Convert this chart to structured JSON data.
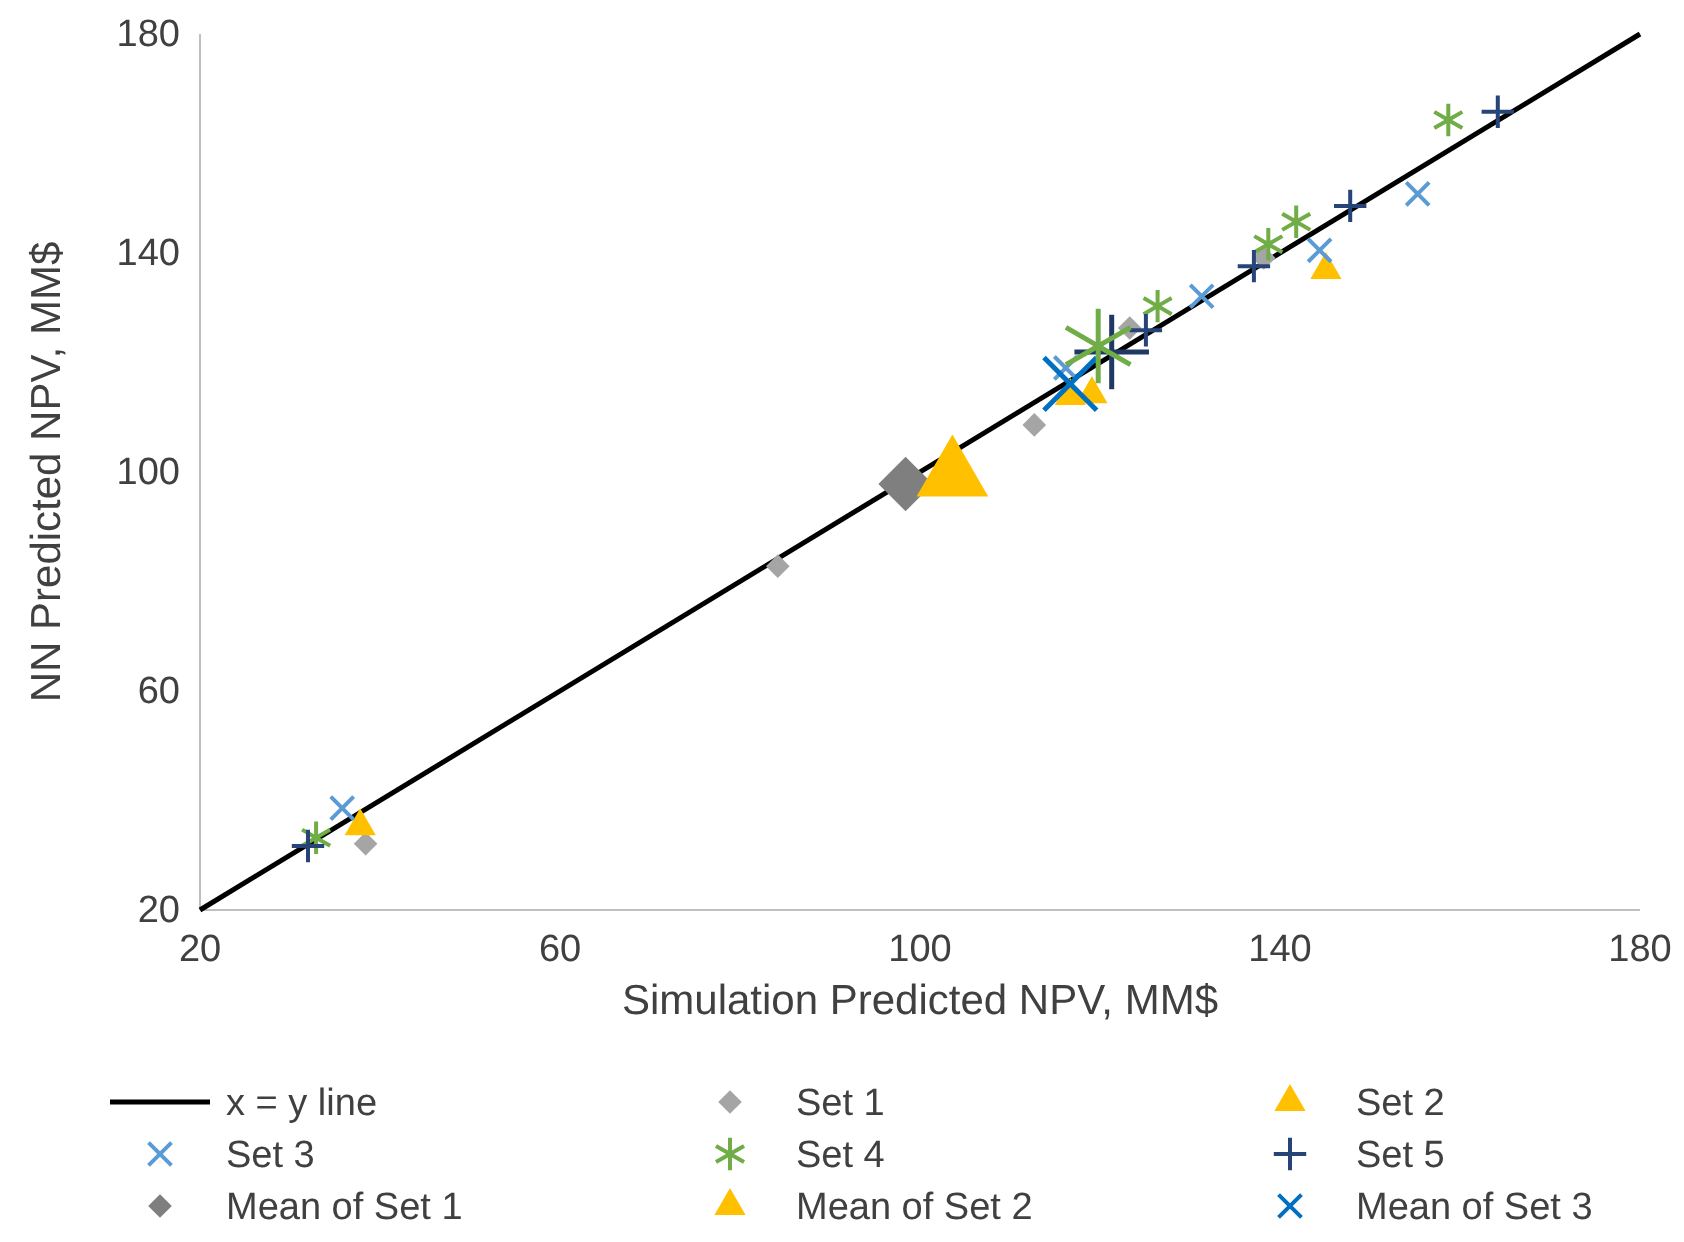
{
  "chart_data": {
    "type": "scatter",
    "xlabel": "Simulation Predicted NPV, MM$",
    "ylabel": "NN Predicted NPV, MM$",
    "xlim": [
      20,
      180
    ],
    "ylim": [
      20,
      180
    ],
    "xticks": [
      20,
      60,
      100,
      140,
      180
    ],
    "yticks": [
      20,
      60,
      100,
      140,
      180
    ],
    "grid": false,
    "legend": "bottom",
    "series": [
      {
        "name": "x = y line",
        "type": "line",
        "color": "#000000",
        "line_style": "solid",
        "marker": "none",
        "x": [
          20,
          180
        ],
        "values": [
          20,
          180
        ]
      },
      {
        "name": "Set 1",
        "color": "#a5a5a5",
        "marker": "diamond",
        "x": [
          38.4,
          84.2,
          112.7,
          123.3,
          138.2
        ],
        "values": [
          32.1,
          82.8,
          108.6,
          126.3,
          139.1
        ]
      },
      {
        "name": "Set 2",
        "color": "#ffc000",
        "marker": "triangle",
        "x": [
          37.8,
          116.7,
          119.1,
          145.1
        ],
        "values": [
          35.3,
          113.9,
          114.2,
          136.9
        ]
      },
      {
        "name": "Set 3",
        "color": "#5b9bd5",
        "marker": "x",
        "x": [
          35.8,
          116.2,
          131.3,
          144.4,
          155.3
        ],
        "values": [
          38.6,
          119.0,
          132.1,
          140.5,
          150.8
        ]
      },
      {
        "name": "Set 4",
        "color": "#70ad47",
        "marker": "star",
        "x": [
          32.9,
          126.4,
          138.7,
          141.8,
          158.7
        ],
        "values": [
          33.2,
          130.3,
          141.6,
          145.7,
          164.3
        ]
      },
      {
        "name": "Set 5",
        "color": "#264478",
        "marker": "cross",
        "x": [
          32.0,
          125.1,
          137.1,
          147.8,
          164.2
        ],
        "values": [
          31.7,
          125.9,
          137.6,
          148.6,
          165.8
        ]
      },
      {
        "name": "Mean of Set 1",
        "color": "#7f7f7f",
        "marker": "diamond",
        "x": [
          98.4
        ],
        "values": [
          97.8
        ]
      },
      {
        "name": "Mean of Set 2",
        "color": "#ffc000",
        "marker": "triangle",
        "x": [
          103.6
        ],
        "values": [
          99.3
        ]
      },
      {
        "name": "Mean of Set 3",
        "color": "#0070c0",
        "marker": "x",
        "x": [
          116.7
        ],
        "values": [
          116.1
        ]
      },
      {
        "color": "#1f3864",
        "marker": "cross",
        "x": [
          121.3
        ],
        "values": [
          121.9
        ]
      },
      {
        "color": "#70ad47",
        "marker": "star",
        "x": [
          119.8
        ],
        "values": [
          123.0
        ]
      }
    ]
  }
}
